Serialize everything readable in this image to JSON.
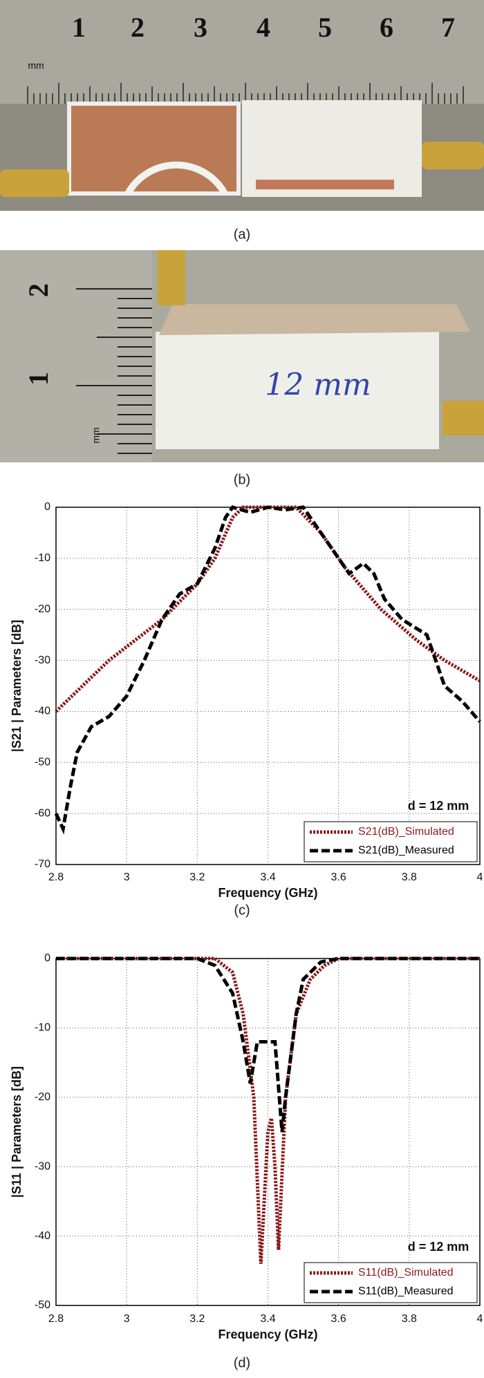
{
  "photos": [
    {
      "caption": "(a)",
      "labels": [
        "1",
        "2",
        "3",
        "4",
        "5",
        "6",
        "7",
        "mm"
      ]
    },
    {
      "caption": "(b)",
      "labels": [
        "2",
        "1",
        "mm",
        "12 mm"
      ]
    }
  ],
  "chart_data": [
    {
      "type": "line",
      "caption": "(c)",
      "x_label": "Frequency (GHz)",
      "y_label": "|S21 | Parameters [dB]",
      "annotation": "d = 12 mm",
      "xlim": [
        2.8,
        4
      ],
      "xticks": [
        2.8,
        3,
        3.2,
        3.4,
        3.6,
        3.8,
        4
      ],
      "ylim": [
        -70,
        0
      ],
      "yticks": [
        -70,
        -60,
        -50,
        -40,
        -30,
        -20,
        -10,
        0
      ],
      "grid": true,
      "legend": "lower right",
      "series": [
        {
          "name": "S21(dB)_Simulated",
          "color": "#8b1a1a",
          "style": "dotted",
          "x": [
            2.8,
            2.95,
            3.1,
            3.2,
            3.25,
            3.3,
            3.33,
            3.4,
            3.48,
            3.55,
            3.62,
            3.72,
            3.82,
            3.9,
            4
          ],
          "values": [
            -40,
            -30,
            -22,
            -15,
            -10,
            -2,
            0,
            0,
            0,
            -5,
            -12,
            -20,
            -26,
            -30,
            -34
          ]
        },
        {
          "name": "S21(dB)_Measured",
          "color": "#000000",
          "style": "dashed",
          "x": [
            2.8,
            2.82,
            2.84,
            2.86,
            2.9,
            2.95,
            3.0,
            3.05,
            3.1,
            3.15,
            3.2,
            3.25,
            3.28,
            3.3,
            3.35,
            3.4,
            3.45,
            3.5,
            3.55,
            3.6,
            3.63,
            3.67,
            3.7,
            3.73,
            3.78,
            3.85,
            3.9,
            3.95,
            4
          ],
          "values": [
            -60,
            -63,
            -55,
            -48,
            -43,
            -41,
            -37,
            -30,
            -22,
            -17,
            -15,
            -8,
            -2,
            0,
            -1,
            0,
            -0.5,
            0,
            -5,
            -10,
            -13,
            -11,
            -13,
            -18,
            -22,
            -25,
            -35,
            -38,
            -42
          ]
        }
      ]
    },
    {
      "type": "line",
      "caption": "(d)",
      "x_label": "Frequency (GHz)",
      "y_label": "|S11 | Parameters [dB]",
      "annotation": "d = 12 mm",
      "xlim": [
        2.8,
        4
      ],
      "xticks": [
        2.8,
        3,
        3.2,
        3.4,
        3.6,
        3.8,
        4
      ],
      "ylim": [
        -50,
        0
      ],
      "yticks": [
        -50,
        -40,
        -30,
        -20,
        -10,
        0
      ],
      "grid": true,
      "legend": "lower right",
      "series": [
        {
          "name": "S11(dB)_Simulated",
          "color": "#8b1a1a",
          "style": "dotted",
          "x": [
            2.8,
            3.25,
            3.3,
            3.33,
            3.36,
            3.38,
            3.4,
            3.41,
            3.42,
            3.43,
            3.45,
            3.48,
            3.52,
            3.56,
            3.6,
            4
          ],
          "values": [
            0,
            0,
            -2,
            -8,
            -20,
            -44,
            -25,
            -23,
            -30,
            -42,
            -20,
            -8,
            -3,
            -1,
            0,
            0
          ]
        },
        {
          "name": "S11(dB)_Measured",
          "color": "#000000",
          "style": "dashed",
          "x": [
            2.8,
            3.2,
            3.25,
            3.3,
            3.33,
            3.35,
            3.37,
            3.4,
            3.42,
            3.44,
            3.45,
            3.48,
            3.5,
            3.55,
            3.6,
            4
          ],
          "values": [
            0,
            0,
            -1,
            -5,
            -12,
            -18,
            -12,
            -12,
            -12,
            -25,
            -20,
            -8,
            -3,
            -0.5,
            0,
            0
          ]
        }
      ]
    }
  ]
}
